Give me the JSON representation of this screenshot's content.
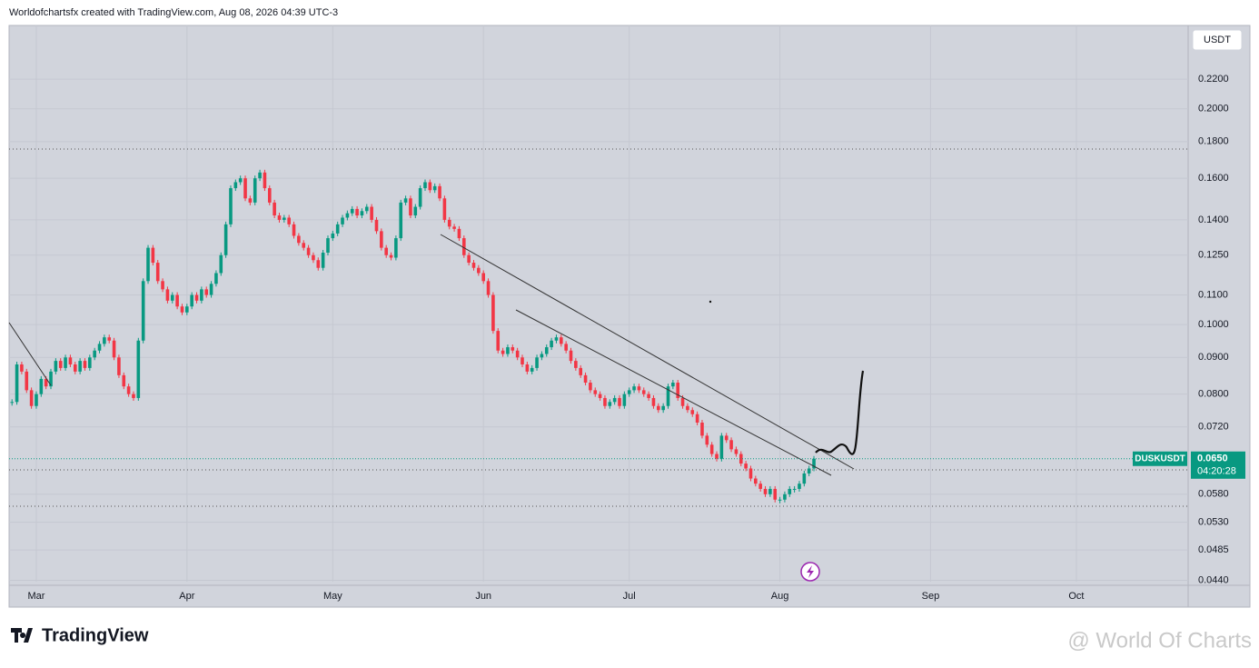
{
  "header": {
    "text": "Worldofchartsfx created with TradingView.com, Aug 08, 2026 04:39 UTC-3"
  },
  "chart_data": {
    "type": "candlestick",
    "series": [
      {
        "name": "DUSKUSDT",
        "values": [
          0.078,
          0.088,
          0.086,
          0.081,
          0.077,
          0.08,
          0.084,
          0.082,
          0.086,
          0.089,
          0.087,
          0.09,
          0.088,
          0.086,
          0.089,
          0.087,
          0.09,
          0.092,
          0.094,
          0.096,
          0.095,
          0.09,
          0.085,
          0.082,
          0.08,
          0.079,
          0.095,
          0.115,
          0.128,
          0.122,
          0.115,
          0.112,
          0.108,
          0.11,
          0.106,
          0.104,
          0.106,
          0.11,
          0.108,
          0.112,
          0.11,
          0.114,
          0.118,
          0.125,
          0.138,
          0.155,
          0.158,
          0.16,
          0.15,
          0.148,
          0.16,
          0.163,
          0.155,
          0.148,
          0.142,
          0.14,
          0.141,
          0.138,
          0.133,
          0.13,
          0.128,
          0.125,
          0.123,
          0.12,
          0.126,
          0.132,
          0.134,
          0.138,
          0.141,
          0.143,
          0.145,
          0.142,
          0.144,
          0.146,
          0.14,
          0.135,
          0.128,
          0.125,
          0.124,
          0.132,
          0.148,
          0.15,
          0.142,
          0.146,
          0.155,
          0.158,
          0.154,
          0.156,
          0.15,
          0.14,
          0.137,
          0.136,
          0.132,
          0.125,
          0.122,
          0.12,
          0.118,
          0.115,
          0.11,
          0.098,
          0.092,
          0.091,
          0.093,
          0.092,
          0.09,
          0.088,
          0.086,
          0.087,
          0.09,
          0.091,
          0.093,
          0.095,
          0.096,
          0.094,
          0.092,
          0.089,
          0.087,
          0.085,
          0.083,
          0.081,
          0.08,
          0.079,
          0.077,
          0.078,
          0.079,
          0.077,
          0.08,
          0.081,
          0.082,
          0.081,
          0.08,
          0.079,
          0.077,
          0.076,
          0.077,
          0.082,
          0.083,
          0.079,
          0.077,
          0.076,
          0.075,
          0.073,
          0.07,
          0.068,
          0.066,
          0.065,
          0.07,
          0.069,
          0.067,
          0.066,
          0.064,
          0.063,
          0.061,
          0.06,
          0.059,
          0.058,
          0.059,
          0.057,
          0.057,
          0.058,
          0.059,
          0.059,
          0.06,
          0.062,
          0.063,
          0.065
        ]
      }
    ],
    "currency": "USDT",
    "log_scale": true,
    "ylim": [
      0.0438,
      0.2614
    ],
    "yticks": [
      {
        "value": 0.22,
        "label": "0.2200"
      },
      {
        "value": 0.2,
        "label": "0.2000"
      },
      {
        "value": 0.18,
        "label": "0.1800"
      },
      {
        "value": 0.16,
        "label": "0.1600"
      },
      {
        "value": 0.14,
        "label": "0.1400"
      },
      {
        "value": 0.125,
        "label": "0.1250"
      },
      {
        "value": 0.11,
        "label": "0.1100"
      },
      {
        "value": 0.1,
        "label": "0.1000"
      },
      {
        "value": 0.09,
        "label": "0.0900"
      },
      {
        "value": 0.08,
        "label": "0.0800"
      },
      {
        "value": 0.072,
        "label": "0.0720"
      },
      {
        "value": 0.058,
        "label": "0.0580"
      },
      {
        "value": 0.053,
        "label": "0.0530"
      },
      {
        "value": 0.0485,
        "label": "0.0485"
      },
      {
        "value": 0.044,
        "label": "0.0440"
      }
    ],
    "xlim": [
      -0.6,
      242
    ],
    "xticks": [
      {
        "value": 5,
        "label": "Mar"
      },
      {
        "value": 36,
        "label": "Apr"
      },
      {
        "value": 66,
        "label": "May"
      },
      {
        "value": 97,
        "label": "Jun"
      },
      {
        "value": 127,
        "label": "Jul"
      },
      {
        "value": 158,
        "label": "Aug"
      },
      {
        "value": 189,
        "label": "Sep"
      },
      {
        "value": 219,
        "label": "Oct"
      }
    ],
    "grid": true,
    "up_color": "#089981",
    "down_color": "#f23645",
    "last_price_label": "0.0650",
    "countdown": "04:20:28"
  },
  "footer": {
    "logo": "TradingView",
    "watermark": "@ World Of Charts"
  }
}
